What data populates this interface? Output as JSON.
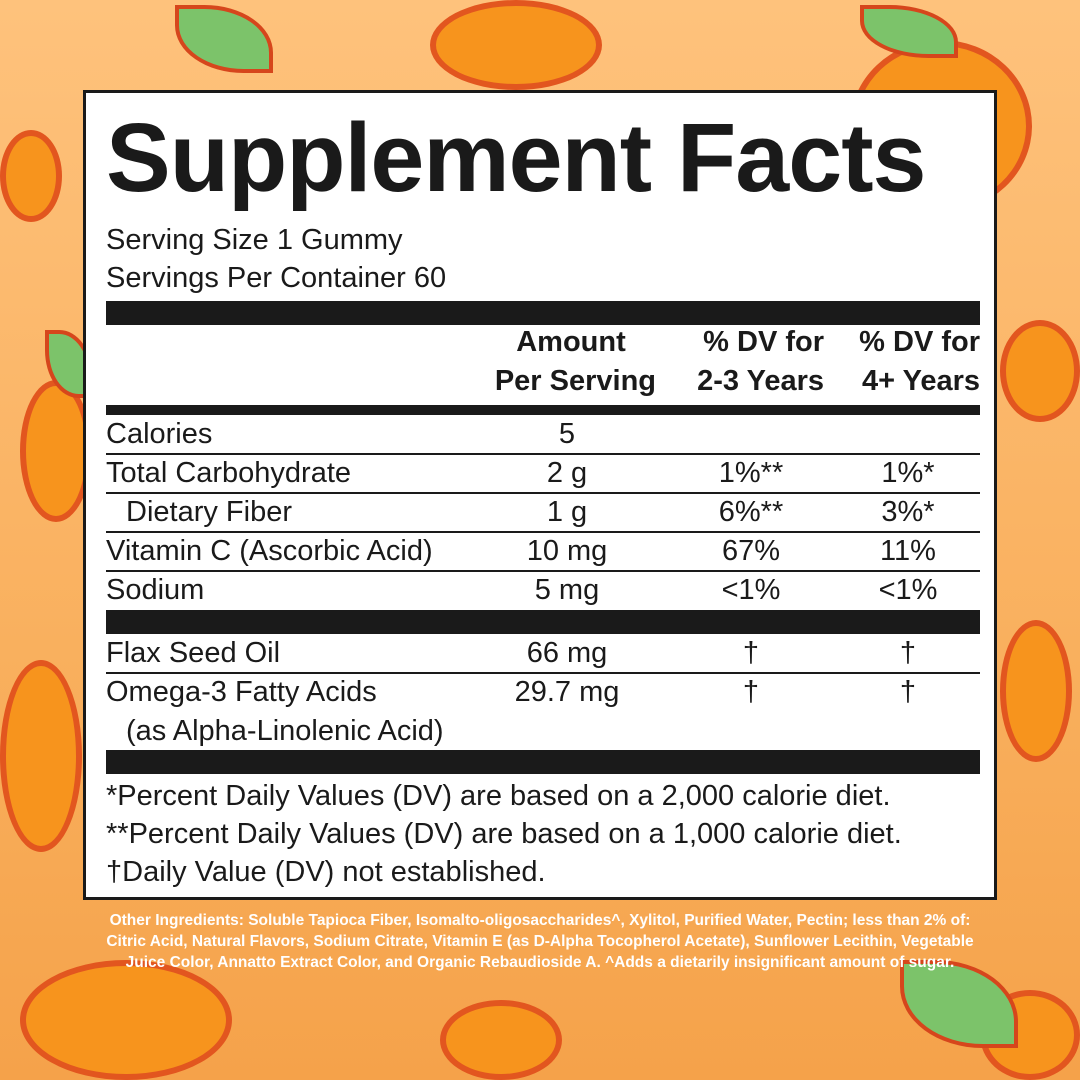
{
  "title": "Supplement Facts",
  "serving_size": "Serving Size 1 Gummy",
  "servings_per_container": "Servings Per Container 60",
  "headers": {
    "amount_1": "Amount",
    "amount_2": "Per Serving",
    "dv_child_1": "% DV for",
    "dv_child_2": "2-3 Years",
    "dv_adult_1": "% DV for",
    "dv_adult_2": "4+ Years"
  },
  "rows": [
    {
      "name": "Calories",
      "amount": "5",
      "dv_child": "",
      "dv_adult": ""
    },
    {
      "name": "Total Carbohydrate",
      "amount": "2 g",
      "dv_child": "1%**",
      "dv_adult": "1%*"
    },
    {
      "name": "Dietary Fiber",
      "amount": "1 g",
      "dv_child": "6%**",
      "dv_adult": "3%*"
    },
    {
      "name": "Vitamin C (Ascorbic Acid)",
      "amount": "10 mg",
      "dv_child": "67%",
      "dv_adult": "11%"
    },
    {
      "name": "Sodium",
      "amount": "5 mg",
      "dv_child": "<1%",
      "dv_adult": "<1%"
    }
  ],
  "rows2": [
    {
      "name": "Flax Seed Oil",
      "amount": "66 mg",
      "dv_child": "†",
      "dv_adult": "†"
    },
    {
      "name": "Omega-3 Fatty Acids",
      "sub": "(as Alpha-Linolenic Acid)",
      "amount": "29.7 mg",
      "dv_child": "†",
      "dv_adult": "†"
    }
  ],
  "footnotes": [
    "*Percent Daily Values (DV) are based on a 2,000 calorie diet.",
    "**Percent Daily Values (DV) are based on a 1,000 calorie diet.",
    "†Daily Value (DV) not established."
  ],
  "other_ingredients": "Other Ingredients: Soluble Tapioca Fiber, Isomalto-oligosaccharides^, Xylitol, Purified Water, Pectin; less than 2% of: Citric Acid, Natural Flavors, Sodium Citrate, Vitamin E (as D-Alpha Tocopherol Acetate), Sunflower Lecithin, Vegetable Juice Color, Annatto Extract Color, and Organic Rebaudioside A. ^Adds a dietarily insignificant amount of sugar.",
  "colors": {
    "background": "#f9b05e",
    "orange": "#f7941d",
    "leaf": "#7cc36a",
    "ink": "#1a1a1a"
  }
}
